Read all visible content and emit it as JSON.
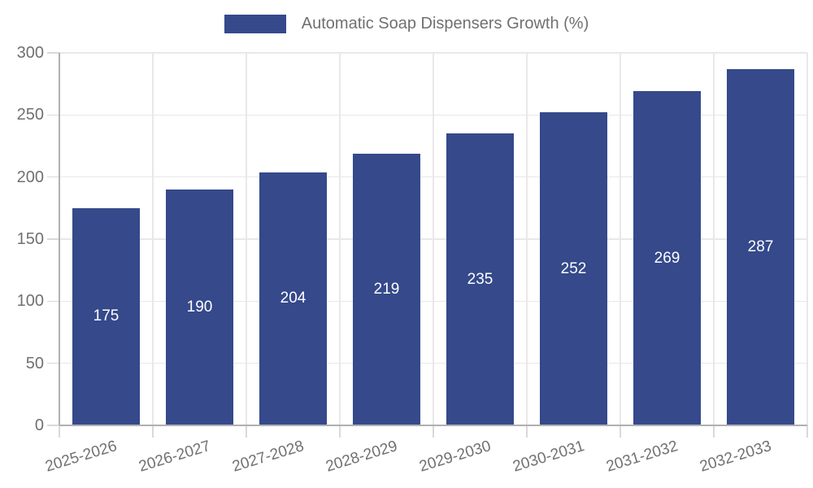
{
  "chart_data": {
    "type": "bar",
    "title": "",
    "series_name": "Automatic Soap Dispensers Growth (%)",
    "categories": [
      "2025-2026",
      "2026-2027",
      "2027-2028",
      "2028-2029",
      "2029-2030",
      "2030-2031",
      "2031-2032",
      "2032-2033"
    ],
    "values": [
      175,
      190,
      204,
      219,
      235,
      252,
      269,
      287
    ],
    "ylim": [
      0,
      300
    ],
    "yticks": [
      0,
      50,
      100,
      150,
      200,
      250,
      300
    ],
    "grid": true,
    "legend_position": "top-center",
    "value_labels": "inside-center",
    "colors": {
      "bar": "#35498b",
      "grid": "#e8e8e8",
      "axis": "#b0b0b0",
      "tick": "#d9d9d9",
      "text": "#707070",
      "value_label": "#ffffff",
      "background": "#ffffff"
    }
  }
}
